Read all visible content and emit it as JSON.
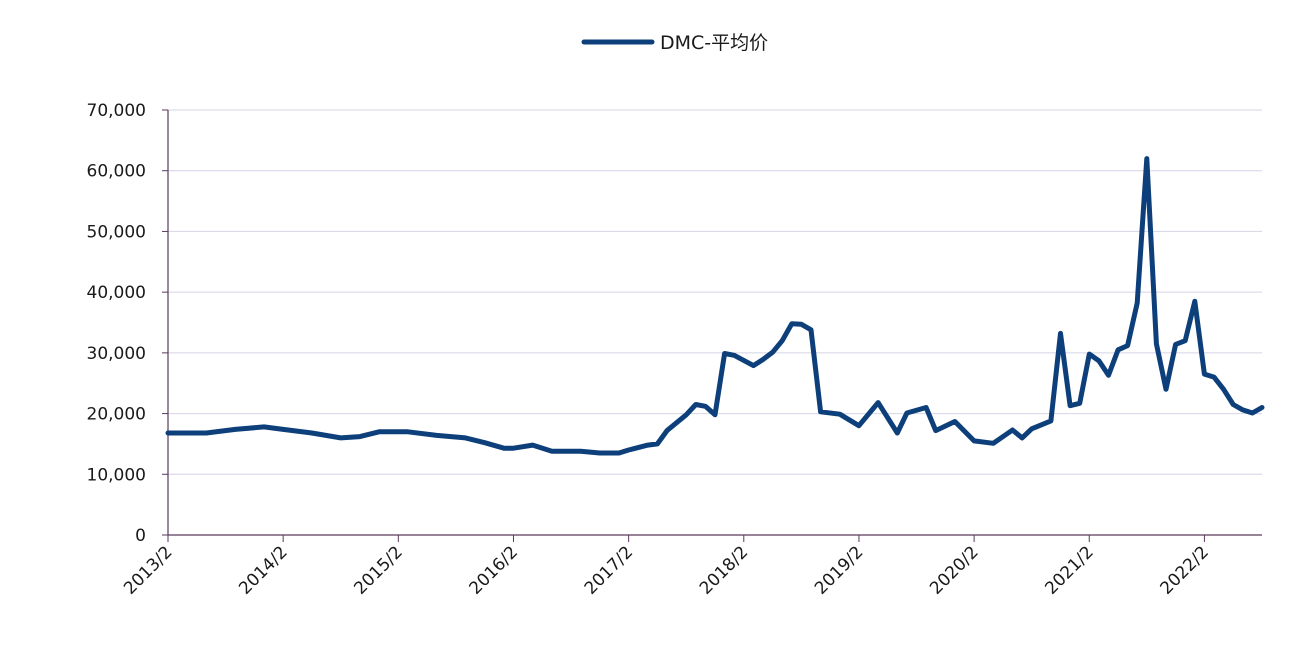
{
  "chart_data": {
    "type": "line",
    "title": "",
    "xlabel": "",
    "ylabel": "",
    "ylim": [
      0,
      70000
    ],
    "yticks": [
      0,
      10000,
      20000,
      30000,
      40000,
      50000,
      60000,
      70000
    ],
    "ytick_labels": [
      "0",
      "10,000",
      "20,000",
      "30,000",
      "40,000",
      "50,000",
      "60,000",
      "70,000"
    ],
    "xlim": [
      "2013-02",
      "2022-08"
    ],
    "xtick_labels": [
      "2013/2",
      "2014/2",
      "2015/2",
      "2016/2",
      "2017/2",
      "2018/2",
      "2019/2",
      "2020/2",
      "2021/2",
      "2022/2"
    ],
    "grid": "horizontal",
    "legend": "top-center",
    "series": [
      {
        "name": "DMC-平均价",
        "color": "#0d3f7a",
        "x": [
          "2013-02",
          "2013-06",
          "2013-09",
          "2013-12",
          "2014-02",
          "2014-05",
          "2014-08",
          "2014-10",
          "2014-12",
          "2015-03",
          "2015-06",
          "2015-09",
          "2015-11",
          "2016-01",
          "2016-02",
          "2016-04",
          "2016-06",
          "2016-07",
          "2016-09",
          "2016-11",
          "2017-01",
          "2017-02",
          "2017-04",
          "2017-05",
          "2017-06",
          "2017-07",
          "2017-08",
          "2017-09",
          "2017-10",
          "2017-11",
          "2017-12",
          "2018-01",
          "2018-03",
          "2018-04",
          "2018-05",
          "2018-06",
          "2018-07",
          "2018-08",
          "2018-09",
          "2018-10",
          "2018-12",
          "2019-02",
          "2019-04",
          "2019-06",
          "2019-07",
          "2019-09",
          "2019-10",
          "2019-12",
          "2020-02",
          "2020-04",
          "2020-06",
          "2020-07",
          "2020-08",
          "2020-10",
          "2020-11",
          "2020-12",
          "2021-01",
          "2021-02",
          "2021-03",
          "2021-04",
          "2021-05",
          "2021-06",
          "2021-07",
          "2021-08",
          "2021-09",
          "2021-10",
          "2021-11",
          "2021-12",
          "2022-01",
          "2022-02",
          "2022-03",
          "2022-04",
          "2022-05",
          "2022-06",
          "2022-07",
          "2022-08"
        ],
        "y": [
          16800,
          16800,
          17400,
          17800,
          17400,
          16800,
          16000,
          16200,
          17000,
          17000,
          16400,
          16000,
          15200,
          14300,
          14300,
          14800,
          13800,
          13800,
          13800,
          13500,
          13500,
          14000,
          14800,
          15000,
          17200,
          18500,
          19800,
          21500,
          21200,
          19800,
          29900,
          29600,
          27900,
          28900,
          30100,
          32000,
          34800,
          34700,
          33800,
          20300,
          19900,
          18000,
          21800,
          16800,
          20100,
          21000,
          17200,
          18700,
          15500,
          15100,
          17300,
          16000,
          17500,
          18800,
          33200,
          21300,
          21700,
          29800,
          28700,
          26300,
          30500,
          31200,
          38200,
          62000,
          31500,
          24000,
          31400,
          32000,
          38500,
          26500,
          26000,
          24000,
          21500,
          20600,
          20100,
          21000
        ]
      }
    ]
  }
}
